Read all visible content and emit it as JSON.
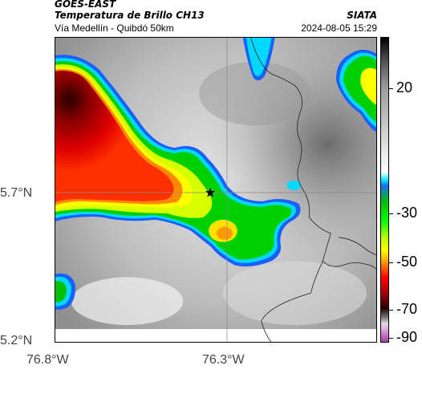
{
  "header": {
    "satellite": "GOES-EAST",
    "product": "Temperatura de Brillo CH13",
    "route": "Vía Medellín - Quibdó 50km",
    "org": "SIATA",
    "timestamp": "2024-08-05 15:29"
  },
  "axes": {
    "y_ticks": [
      "5.7°N",
      "5.2°N"
    ],
    "x_ticks": [
      "76.8°W",
      "76.3°W"
    ]
  },
  "colorbar": {
    "labels": [
      "20",
      "-30",
      "-50",
      "-70",
      "-90"
    ]
  },
  "colors": {
    "cold_core": "#8b0000",
    "red": "#e00000",
    "green": "#00e000",
    "yellow": "#ffff00",
    "cyan": "#00d8ff",
    "blue": "#1a5fff"
  },
  "marker": {
    "icon": "star-icon"
  }
}
